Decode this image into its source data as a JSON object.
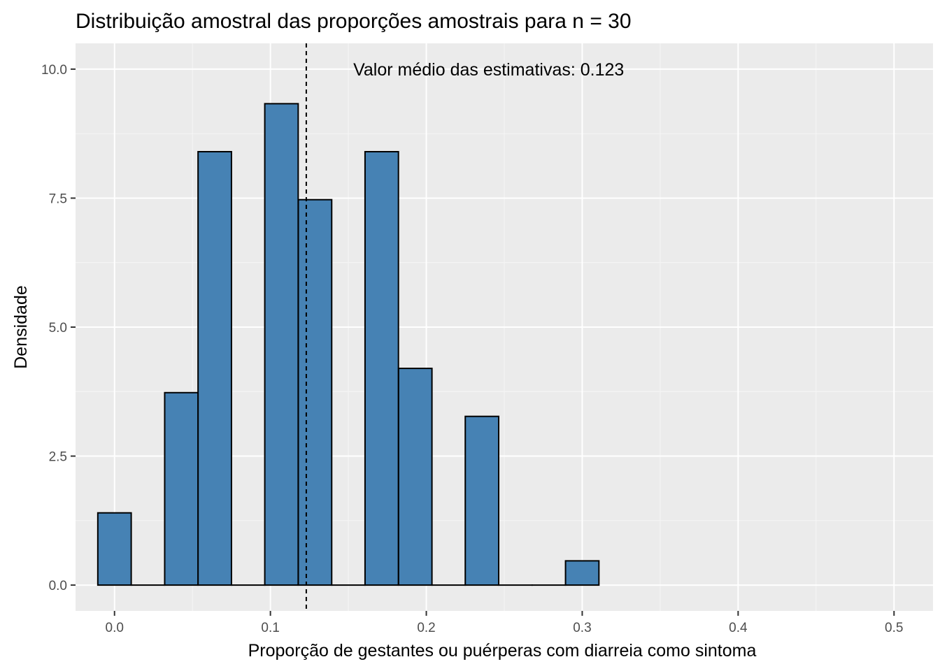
{
  "chart_data": {
    "type": "bar",
    "title": "Distribuição amostral das proporções amostrais para n = 30",
    "xlabel": "Proporção de gestantes ou puérperas com diarreia como sintoma",
    "ylabel": "Densidade",
    "xlim": [
      -0.025,
      0.525
    ],
    "ylim": [
      -0.5,
      10.5
    ],
    "x_ticks": [
      0.0,
      0.1,
      0.2,
      0.3,
      0.4,
      0.5
    ],
    "x_tick_labels": [
      "0.0",
      "0.1",
      "0.2",
      "0.3",
      "0.4",
      "0.5"
    ],
    "y_ticks": [
      0.0,
      2.5,
      5.0,
      7.5,
      10.0
    ],
    "y_tick_labels": [
      "0.0",
      "2.5",
      "5.0",
      "7.5",
      "10.0"
    ],
    "grid": true,
    "bin_width": 0.02143,
    "bins": [
      {
        "x": 0.0,
        "density": 1.4
      },
      {
        "x": 0.0214,
        "density": 0.0
      },
      {
        "x": 0.0429,
        "density": 3.73
      },
      {
        "x": 0.0643,
        "density": 8.4
      },
      {
        "x": 0.0857,
        "density": 0.0
      },
      {
        "x": 0.1071,
        "density": 9.33
      },
      {
        "x": 0.1286,
        "density": 7.47
      },
      {
        "x": 0.15,
        "density": 0.0
      },
      {
        "x": 0.1714,
        "density": 8.4
      },
      {
        "x": 0.1929,
        "density": 4.2
      },
      {
        "x": 0.2143,
        "density": 0.0
      },
      {
        "x": 0.2357,
        "density": 3.27
      },
      {
        "x": 0.2571,
        "density": 0.0
      },
      {
        "x": 0.2786,
        "density": 0.0
      },
      {
        "x": 0.3,
        "density": 0.47
      }
    ],
    "mean_line": {
      "x": 0.123,
      "style": "dashed"
    },
    "annotation": {
      "text": "Valor médio das estimativas: 0.123",
      "x": 0.24,
      "y": 10.0
    },
    "colors": {
      "bar_fill": "#4682b4",
      "bar_stroke": "#000000",
      "panel_background": "#ebebeb",
      "grid_major": "#ffffff",
      "grid_minor": "#f5f5f5",
      "tick_color": "#333333"
    }
  }
}
